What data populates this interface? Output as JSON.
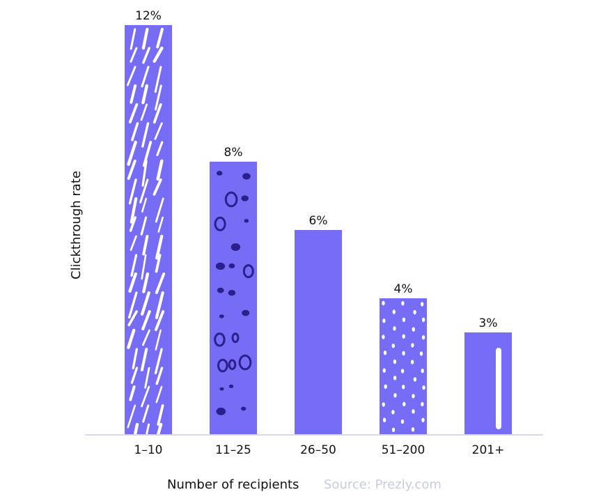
{
  "chart_data": {
    "type": "bar",
    "categories": [
      "1–10",
      "11–25",
      "26–50",
      "51–200",
      "201+"
    ],
    "values": [
      12,
      8,
      6,
      4,
      3
    ],
    "value_labels": [
      "12%",
      "8%",
      "6%",
      "4%",
      "3%"
    ],
    "xlabel": "Number of recipients",
    "ylabel": "Clickthrough rate",
    "ylim": [
      0,
      12
    ],
    "grid": false,
    "legend": "none"
  },
  "source": "Source: Prezly.com",
  "colors": {
    "bar": "#776cf5",
    "axis": "#d9d7f3",
    "text": "#111111",
    "source": "#c9cbe0",
    "pattern_light": "#ffffff",
    "pattern_dark": "#2a1f8c"
  }
}
